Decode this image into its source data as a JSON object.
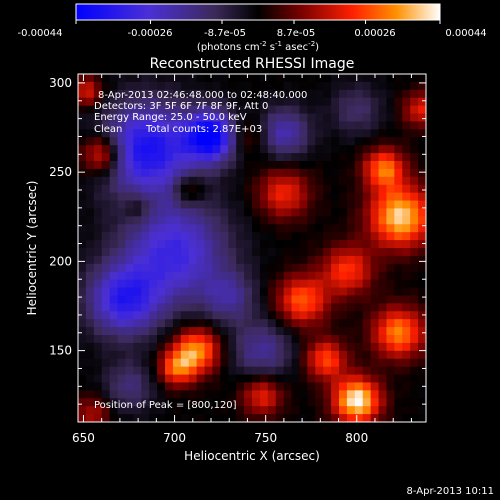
{
  "colorbar": {
    "ticks": [
      "-0.00044",
      "-0.00026",
      "-8.7e-05",
      "8.7e-05",
      "0.00026",
      "0.00044"
    ],
    "tick_values": [
      -0.00044,
      -0.00026,
      -8.7e-05,
      8.7e-05,
      0.00026,
      0.00044
    ],
    "range": [
      -0.00044,
      0.00044
    ],
    "units_prefix": "(photons cm",
    "units_exp1": "-2",
    "units_mid": " s",
    "units_exp2": "-1",
    "units_mid2": " asec",
    "units_exp3": "-2",
    "units_suffix": ")"
  },
  "chart_data": {
    "type": "heatmap",
    "title": "Reconstructed RHESSI Image",
    "xlabel": "Heliocentric X (arcsec)",
    "ylabel": "Heliocentric Y (arcsec)",
    "xlim": [
      647,
      838
    ],
    "ylim": [
      110,
      305
    ],
    "x_ticks": [
      "650",
      "700",
      "750",
      "800"
    ],
    "x_tick_values": [
      650,
      700,
      750,
      800
    ],
    "y_ticks": [
      "150",
      "200",
      "250",
      "300"
    ],
    "y_tick_values": [
      150,
      200,
      250,
      300
    ],
    "colormap": [
      "#0000ff",
      "#4b2fd6",
      "#3c2a5a",
      "#000000",
      "#7a0000",
      "#ff2000",
      "#ff9000",
      "#ffffff"
    ],
    "peak_x": 800,
    "peak_y": 120,
    "annotations": {
      "time_range": "8-Apr-2013 02:46:48.000 to 02:48:40.000",
      "detectors": "Detectors: 3F 5F 6F 7F 8F 9F, Att 0",
      "energy": "Energy Range: 25.0 - 50.0 keV",
      "method": "Clean",
      "counts": "Total counts: 2.87E+03",
      "peak": "Position of Peak = [800,120]"
    },
    "sources": [
      {
        "x": 800,
        "y": 122,
        "v": 0.00044,
        "r": 9
      },
      {
        "x": 824,
        "y": 225,
        "v": 0.0004,
        "r": 12
      },
      {
        "x": 815,
        "y": 252,
        "v": 0.0003,
        "r": 8
      },
      {
        "x": 712,
        "y": 150,
        "v": 0.00034,
        "r": 9
      },
      {
        "x": 701,
        "y": 140,
        "v": 0.00026,
        "r": 7
      },
      {
        "x": 823,
        "y": 160,
        "v": 0.00032,
        "r": 10
      },
      {
        "x": 770,
        "y": 178,
        "v": 0.00028,
        "r": 10
      },
      {
        "x": 795,
        "y": 195,
        "v": 0.00024,
        "r": 10
      },
      {
        "x": 783,
        "y": 145,
        "v": 0.00026,
        "r": 8
      },
      {
        "x": 660,
        "y": 260,
        "v": 0.00028,
        "r": 8
      },
      {
        "x": 652,
        "y": 295,
        "v": 0.0002,
        "r": 6
      },
      {
        "x": 748,
        "y": 125,
        "v": 0.00022,
        "r": 8
      },
      {
        "x": 760,
        "y": 238,
        "v": 0.00022,
        "r": 10
      },
      {
        "x": 708,
        "y": 240,
        "v": 0.00016,
        "r": 6
      },
      {
        "x": 655,
        "y": 115,
        "v": 0.00015,
        "r": 7
      },
      {
        "x": 740,
        "y": 270,
        "v": 0.00012,
        "r": 8
      },
      {
        "x": 680,
        "y": 230,
        "v": 0.0001,
        "r": 6
      },
      {
        "x": 835,
        "y": 285,
        "v": 0.0002,
        "r": 7
      },
      {
        "x": 685,
        "y": 263,
        "v": -0.00038,
        "r": 18
      },
      {
        "x": 720,
        "y": 270,
        "v": -0.00044,
        "r": 10
      },
      {
        "x": 700,
        "y": 205,
        "v": -0.0003,
        "r": 20
      },
      {
        "x": 672,
        "y": 178,
        "v": -0.00032,
        "r": 14
      },
      {
        "x": 760,
        "y": 272,
        "v": -0.00022,
        "r": 10
      },
      {
        "x": 748,
        "y": 150,
        "v": -0.00018,
        "r": 12
      },
      {
        "x": 730,
        "y": 180,
        "v": -0.00016,
        "r": 10
      },
      {
        "x": 675,
        "y": 130,
        "v": -0.00014,
        "r": 10
      },
      {
        "x": 800,
        "y": 285,
        "v": -0.00012,
        "r": 10
      }
    ]
  },
  "footer": {
    "timestamp": "8-Apr-2013 10:11"
  }
}
